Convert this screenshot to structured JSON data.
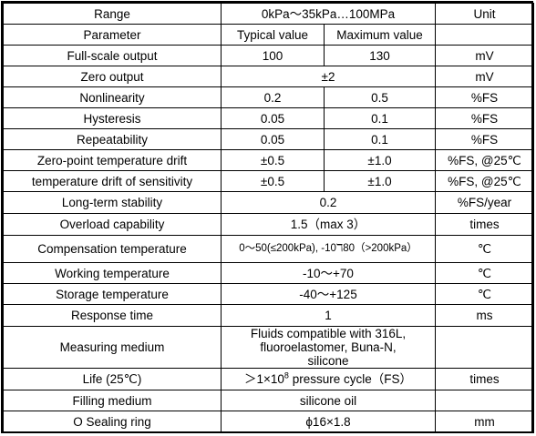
{
  "header": {
    "label": "Range",
    "range": "0kPa～35kPa…100MPa",
    "unit": "Unit"
  },
  "params_header": {
    "label": "Parameter",
    "typical": "Typical value",
    "maximum": "Maximum value",
    "unit": ""
  },
  "rows": [
    {
      "param": "Full-scale output",
      "typical": "100",
      "maximum": "130",
      "unit": "mV"
    },
    {
      "param": "Zero output",
      "value": "±2",
      "unit": "mV"
    },
    {
      "param": "Nonlinearity",
      "typical": "0.2",
      "maximum": "0.5",
      "unit": "%FS"
    },
    {
      "param": "Hysteresis",
      "typical": "0.05",
      "maximum": "0.1",
      "unit": "%FS"
    },
    {
      "param": "Repeatability",
      "typical": "0.05",
      "maximum": "0.1",
      "unit": "%FS"
    },
    {
      "param": "Zero-point temperature drift",
      "typical": "±0.5",
      "maximum": "±1.0",
      "unit": "%FS, @25℃"
    },
    {
      "param": "temperature drift of sensitivity",
      "typical": "±0.5",
      "maximum": "±1.0",
      "unit": "%FS, @25℃"
    },
    {
      "param": "Long-term stability",
      "value": "0.2",
      "unit": "%FS/year"
    },
    {
      "param": "Overload capability",
      "value": "1.5（max 3）",
      "unit": "times"
    },
    {
      "param": "Compensation temperature",
      "value": "0～50(≤200kPa), -10ℸ80（>200kPa）",
      "unit": "℃"
    },
    {
      "param": "Working temperature",
      "value": "-10～+70",
      "unit": "℃"
    },
    {
      "param": "Storage temperature",
      "value": "-40～+125",
      "unit": "℃"
    },
    {
      "param": "Response time",
      "value": "1",
      "unit": "ms"
    },
    {
      "param": "Measuring medium",
      "value": "Fluids compatible with 316L, fluoroelastomer, Buna-N, silicone",
      "unit": ""
    },
    {
      "param": "Life (25℃)",
      "value_prefix": "＞1×10",
      "value_sup": "8",
      "value_suffix": " pressure cycle（FS）",
      "unit": "times"
    },
    {
      "param": "Filling medium",
      "value": "silicone oil",
      "unit": ""
    },
    {
      "param": "O Sealing ring",
      "value": "ϕ16×1.8",
      "unit": "mm"
    }
  ]
}
